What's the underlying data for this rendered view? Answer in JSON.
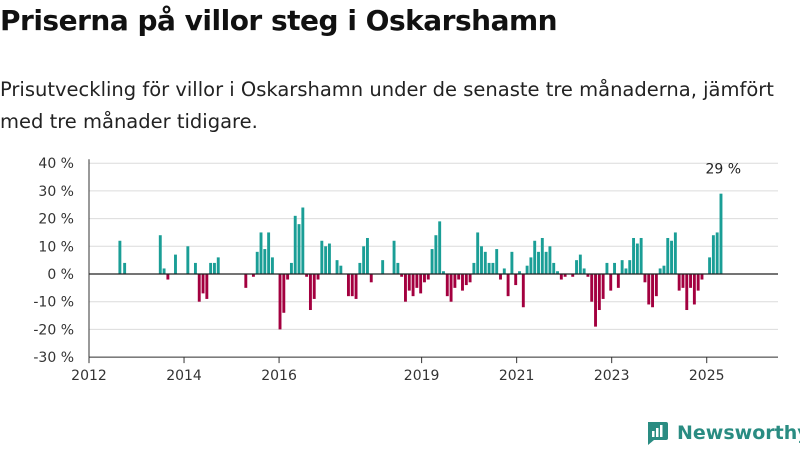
{
  "header": {
    "title": "Priserna på villor steg i Oskarshamn",
    "subtitle": "Prisutveckling för villor i Oskarshamn under de senaste tre månaderna, jämfört med tre månader tidigare."
  },
  "brand": {
    "name": "Newsworthy",
    "icon": "newsworthy-logo-icon",
    "color": "#2a8c82"
  },
  "chart_data": {
    "type": "bar",
    "unit": "%",
    "colors": {
      "positive": "#1a9e96",
      "negative": "#a3003f"
    },
    "x_ticks": [
      "2012",
      "2014",
      "2016",
      "2019",
      "2021",
      "2023",
      "2025"
    ],
    "y_ticks": [
      "40 %",
      "30 %",
      "20 %",
      "10 %",
      "0 %",
      "-10 %",
      "-20 %",
      "-30 %"
    ],
    "ylim": [
      -30,
      40
    ],
    "xlim": [
      2012.0,
      2026.5
    ],
    "grid": "horizontal",
    "legend": "none",
    "annotations": [
      {
        "label": "29 %",
        "x": 2025.6,
        "y": 29
      }
    ],
    "series": [
      {
        "values": [
          {
            "x": 2012.65,
            "y": 12
          },
          {
            "x": 2012.75,
            "y": 4
          },
          {
            "x": 2013.5,
            "y": 14
          },
          {
            "x": 2013.58,
            "y": 2
          },
          {
            "x": 2013.66,
            "y": -2
          },
          {
            "x": 2013.82,
            "y": 7
          },
          {
            "x": 2014.08,
            "y": 10
          },
          {
            "x": 2014.24,
            "y": 4
          },
          {
            "x": 2014.32,
            "y": -10
          },
          {
            "x": 2014.4,
            "y": -7
          },
          {
            "x": 2014.48,
            "y": -9
          },
          {
            "x": 2014.56,
            "y": 4
          },
          {
            "x": 2014.64,
            "y": 4
          },
          {
            "x": 2014.72,
            "y": 6
          },
          {
            "x": 2015.3,
            "y": -5
          },
          {
            "x": 2015.46,
            "y": -1
          },
          {
            "x": 2015.54,
            "y": 8
          },
          {
            "x": 2015.62,
            "y": 15
          },
          {
            "x": 2015.7,
            "y": 9
          },
          {
            "x": 2015.78,
            "y": 15
          },
          {
            "x": 2015.86,
            "y": 6
          },
          {
            "x": 2016.02,
            "y": -20
          },
          {
            "x": 2016.1,
            "y": -14
          },
          {
            "x": 2016.18,
            "y": -2
          },
          {
            "x": 2016.26,
            "y": 4
          },
          {
            "x": 2016.34,
            "y": 21
          },
          {
            "x": 2016.42,
            "y": 18
          },
          {
            "x": 2016.5,
            "y": 24
          },
          {
            "x": 2016.58,
            "y": -1
          },
          {
            "x": 2016.66,
            "y": -13
          },
          {
            "x": 2016.74,
            "y": -9
          },
          {
            "x": 2016.82,
            "y": -2
          },
          {
            "x": 2016.9,
            "y": 12
          },
          {
            "x": 2016.98,
            "y": 10
          },
          {
            "x": 2017.06,
            "y": 11
          },
          {
            "x": 2017.22,
            "y": 5
          },
          {
            "x": 2017.3,
            "y": 3
          },
          {
            "x": 2017.46,
            "y": -8
          },
          {
            "x": 2017.54,
            "y": -8
          },
          {
            "x": 2017.62,
            "y": -9
          },
          {
            "x": 2017.7,
            "y": 4
          },
          {
            "x": 2017.78,
            "y": 10
          },
          {
            "x": 2017.86,
            "y": 13
          },
          {
            "x": 2017.94,
            "y": -3
          },
          {
            "x": 2018.18,
            "y": 5
          },
          {
            "x": 2018.42,
            "y": 12
          },
          {
            "x": 2018.5,
            "y": 4
          },
          {
            "x": 2018.58,
            "y": -1
          },
          {
            "x": 2018.66,
            "y": -10
          },
          {
            "x": 2018.74,
            "y": -6
          },
          {
            "x": 2018.82,
            "y": -8
          },
          {
            "x": 2018.9,
            "y": -5
          },
          {
            "x": 2018.98,
            "y": -7
          },
          {
            "x": 2019.06,
            "y": -3
          },
          {
            "x": 2019.14,
            "y": -2
          },
          {
            "x": 2019.22,
            "y": 9
          },
          {
            "x": 2019.3,
            "y": 14
          },
          {
            "x": 2019.38,
            "y": 19
          },
          {
            "x": 2019.46,
            "y": 1
          },
          {
            "x": 2019.54,
            "y": -8
          },
          {
            "x": 2019.62,
            "y": -10
          },
          {
            "x": 2019.7,
            "y": -5
          },
          {
            "x": 2019.78,
            "y": -2
          },
          {
            "x": 2019.86,
            "y": -6
          },
          {
            "x": 2019.94,
            "y": -4
          },
          {
            "x": 2020.02,
            "y": -3
          },
          {
            "x": 2020.1,
            "y": 4
          },
          {
            "x": 2020.18,
            "y": 15
          },
          {
            "x": 2020.26,
            "y": 10
          },
          {
            "x": 2020.34,
            "y": 8
          },
          {
            "x": 2020.42,
            "y": 4
          },
          {
            "x": 2020.5,
            "y": 4
          },
          {
            "x": 2020.58,
            "y": 9
          },
          {
            "x": 2020.66,
            "y": -2
          },
          {
            "x": 2020.74,
            "y": 2
          },
          {
            "x": 2020.82,
            "y": -8
          },
          {
            "x": 2020.9,
            "y": 8
          },
          {
            "x": 2020.98,
            "y": -4
          },
          {
            "x": 2021.06,
            "y": 1
          },
          {
            "x": 2021.14,
            "y": -12
          },
          {
            "x": 2021.22,
            "y": 3
          },
          {
            "x": 2021.3,
            "y": 6
          },
          {
            "x": 2021.38,
            "y": 12
          },
          {
            "x": 2021.46,
            "y": 8
          },
          {
            "x": 2021.54,
            "y": 13
          },
          {
            "x": 2021.62,
            "y": 8
          },
          {
            "x": 2021.7,
            "y": 10
          },
          {
            "x": 2021.78,
            "y": 4
          },
          {
            "x": 2021.86,
            "y": 1
          },
          {
            "x": 2021.94,
            "y": -2
          },
          {
            "x": 2022.02,
            "y": -1
          },
          {
            "x": 2022.18,
            "y": -1
          },
          {
            "x": 2022.26,
            "y": 5
          },
          {
            "x": 2022.34,
            "y": 7
          },
          {
            "x": 2022.42,
            "y": 2
          },
          {
            "x": 2022.5,
            "y": -1
          },
          {
            "x": 2022.58,
            "y": -10
          },
          {
            "x": 2022.66,
            "y": -19
          },
          {
            "x": 2022.74,
            "y": -13
          },
          {
            "x": 2022.82,
            "y": -9
          },
          {
            "x": 2022.9,
            "y": 4
          },
          {
            "x": 2022.98,
            "y": -6
          },
          {
            "x": 2023.06,
            "y": 4
          },
          {
            "x": 2023.14,
            "y": -5
          },
          {
            "x": 2023.22,
            "y": 5
          },
          {
            "x": 2023.3,
            "y": 2
          },
          {
            "x": 2023.38,
            "y": 5
          },
          {
            "x": 2023.46,
            "y": 13
          },
          {
            "x": 2023.54,
            "y": 11
          },
          {
            "x": 2023.62,
            "y": 13
          },
          {
            "x": 2023.7,
            "y": -3
          },
          {
            "x": 2023.78,
            "y": -11
          },
          {
            "x": 2023.86,
            "y": -12
          },
          {
            "x": 2023.94,
            "y": -8
          },
          {
            "x": 2024.02,
            "y": 2
          },
          {
            "x": 2024.1,
            "y": 3
          },
          {
            "x": 2024.18,
            "y": 13
          },
          {
            "x": 2024.26,
            "y": 12
          },
          {
            "x": 2024.34,
            "y": 15
          },
          {
            "x": 2024.42,
            "y": -6
          },
          {
            "x": 2024.5,
            "y": -5
          },
          {
            "x": 2024.58,
            "y": -13
          },
          {
            "x": 2024.66,
            "y": -5
          },
          {
            "x": 2024.74,
            "y": -11
          },
          {
            "x": 2024.82,
            "y": -6
          },
          {
            "x": 2024.9,
            "y": -2
          },
          {
            "x": 2025.06,
            "y": 6
          },
          {
            "x": 2025.14,
            "y": 14
          },
          {
            "x": 2025.22,
            "y": 15
          },
          {
            "x": 2025.3,
            "y": 29
          }
        ]
      }
    ]
  }
}
